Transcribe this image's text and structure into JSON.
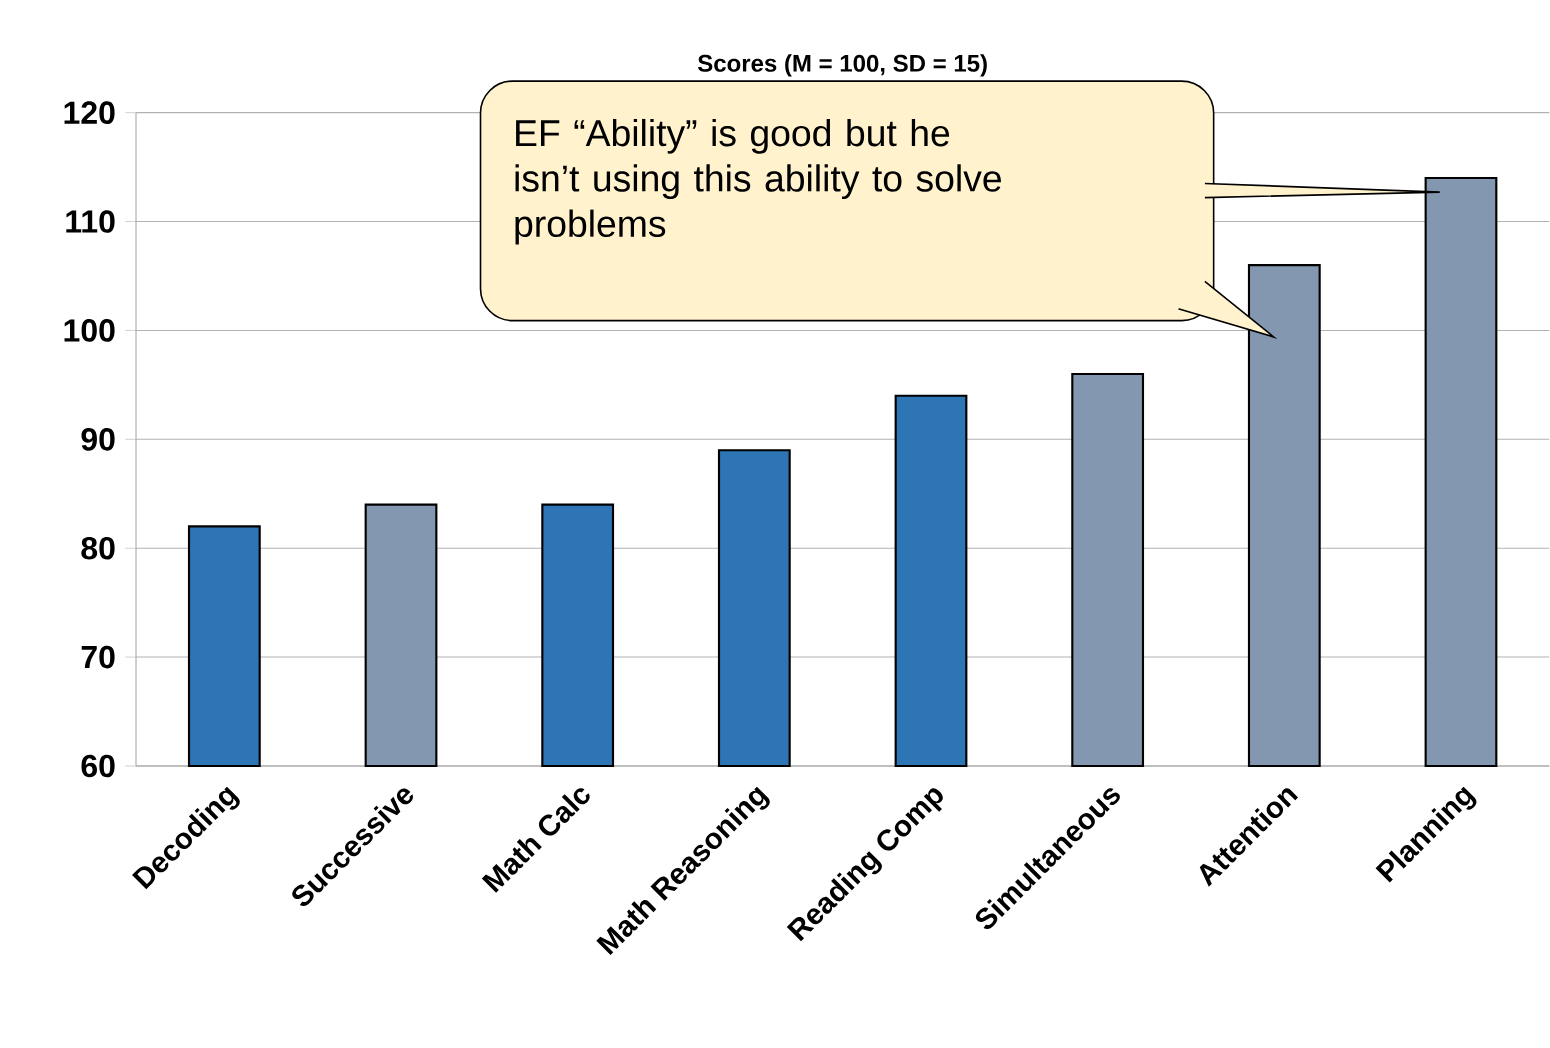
{
  "chart_data": {
    "type": "bar",
    "title": "Scores (M = 100, SD = 15)",
    "categories": [
      "Decoding",
      "Successive",
      "Math Calc",
      "Math Reasoning",
      "Reading Comp",
      "Simultaneous",
      "Attention",
      "Planning"
    ],
    "values": [
      82,
      84,
      84,
      89,
      94,
      96,
      106,
      114
    ],
    "colors": [
      "#2e75b6",
      "#8497b0",
      "#2e75b6",
      "#2e75b6",
      "#2e75b6",
      "#8497b0",
      "#8497b0",
      "#8497b0"
    ],
    "ylim": [
      60,
      120
    ],
    "yticks": [
      60,
      70,
      80,
      90,
      100,
      110,
      120
    ],
    "grid": "y",
    "annotations": [
      "EF “Ability” is good but  he isn’t using this ability to solve problems"
    ]
  }
}
